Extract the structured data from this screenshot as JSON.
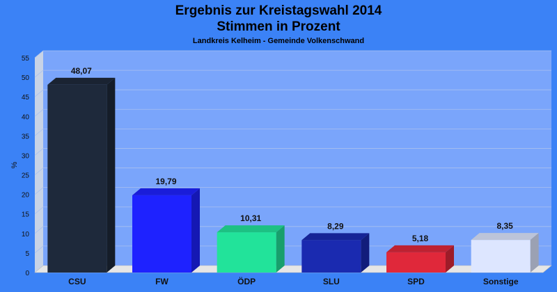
{
  "chart_data": {
    "type": "bar",
    "title": "Ergebnis zur Kreistagswahl 2014",
    "subtitle": "Stimmen in Prozent",
    "subsubtitle": "Landkreis Kelheim - Gemeinde Volkenschwand",
    "ylabel": "%",
    "ylim": [
      0,
      55
    ],
    "ytick_step": 5,
    "yticks": [
      "0",
      "5",
      "10",
      "15",
      "20",
      "25",
      "30",
      "35",
      "40",
      "45",
      "50",
      "55"
    ],
    "categories": [
      "CSU",
      "FW",
      "ÖDP",
      "SLU",
      "SPD",
      "Sonstige"
    ],
    "values": [
      48.07,
      19.79,
      10.31,
      8.29,
      5.18,
      8.35
    ],
    "value_labels": [
      "48,07",
      "19,79",
      "10,31",
      "8,29",
      "5,18",
      "8,35"
    ],
    "colors": [
      "#1e293b",
      "#1e22ff",
      "#22e39a",
      "#1a2ab0",
      "#e0283a",
      "#dde6ff"
    ],
    "grid": true,
    "legend": "none"
  }
}
